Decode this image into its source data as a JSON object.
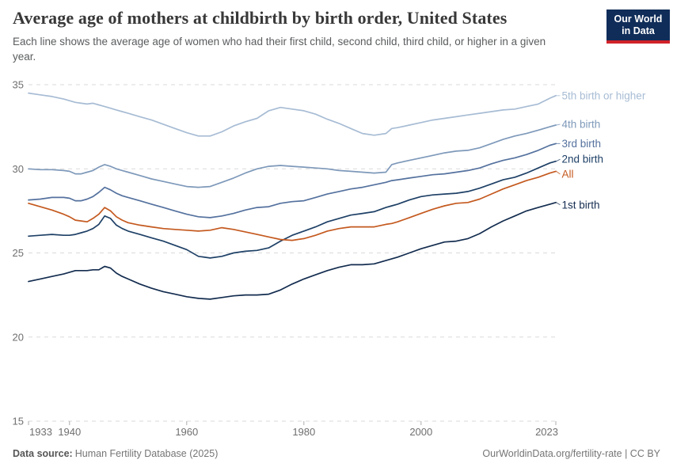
{
  "header": {
    "title": "Average age of mothers at childbirth by birth order, United States",
    "subtitle": "Each line shows the average age of women who had their first child, second child, third child, or higher in a given year.",
    "logo": {
      "line1": "Our World",
      "line2": "in Data",
      "bg_color": "#102d59",
      "accent_color": "#d12229"
    }
  },
  "footer": {
    "source_label": "Data source:",
    "source_value": "Human Fertility Database (2025)",
    "right_text": "OurWorldinData.org/fertility-rate | CC BY"
  },
  "chart_data": {
    "type": "line",
    "title": "Average age of mothers at childbirth by birth order, United States",
    "xlabel": "",
    "ylabel": "",
    "xlim": [
      1933,
      2023
    ],
    "ylim": [
      15,
      35
    ],
    "grid": "horizontal-dashed",
    "legend_position": "right-inline-labels",
    "y_ticks": [
      35,
      30,
      25,
      20,
      15
    ],
    "x_ticks": [
      1933,
      1940,
      1960,
      1980,
      2000,
      2023
    ],
    "x": [
      1933,
      1935,
      1937,
      1939,
      1940,
      1941,
      1942,
      1943,
      1944,
      1945,
      1946,
      1947,
      1948,
      1949,
      1950,
      1952,
      1954,
      1956,
      1958,
      1960,
      1962,
      1964,
      1966,
      1968,
      1970,
      1972,
      1974,
      1976,
      1978,
      1980,
      1982,
      1984,
      1986,
      1988,
      1990,
      1992,
      1994,
      1995,
      1996,
      1998,
      2000,
      2002,
      2004,
      2006,
      2008,
      2010,
      2012,
      2014,
      2016,
      2018,
      2020,
      2022,
      2023
    ],
    "series": [
      {
        "name": "5th birth or higher",
        "color": "#a7bcd4",
        "values": [
          34.5,
          34.4,
          34.3,
          34.15,
          34.05,
          33.95,
          33.9,
          33.85,
          33.9,
          33.8,
          33.7,
          33.6,
          33.5,
          33.4,
          33.3,
          33.1,
          32.9,
          32.65,
          32.4,
          32.15,
          31.95,
          31.95,
          32.2,
          32.55,
          32.8,
          33.0,
          33.45,
          33.65,
          33.55,
          33.45,
          33.25,
          32.95,
          32.7,
          32.4,
          32.1,
          32.0,
          32.1,
          32.4,
          32.45,
          32.6,
          32.75,
          32.9,
          33.0,
          33.1,
          33.2,
          33.3,
          33.4,
          33.5,
          33.55,
          33.7,
          33.85,
          34.2,
          34.35
        ]
      },
      {
        "name": "4th birth",
        "color": "#7e99ba",
        "values": [
          30.0,
          29.95,
          29.95,
          29.9,
          29.85,
          29.7,
          29.7,
          29.8,
          29.9,
          30.1,
          30.25,
          30.15,
          30.0,
          29.9,
          29.8,
          29.6,
          29.4,
          29.25,
          29.1,
          28.95,
          28.9,
          28.95,
          29.2,
          29.45,
          29.75,
          30.0,
          30.15,
          30.2,
          30.15,
          30.1,
          30.05,
          30.0,
          29.9,
          29.85,
          29.8,
          29.75,
          29.8,
          30.25,
          30.35,
          30.5,
          30.65,
          30.8,
          30.95,
          31.05,
          31.1,
          31.25,
          31.5,
          31.75,
          31.95,
          32.1,
          32.3,
          32.5,
          32.6
        ]
      },
      {
        "name": "3rd birth",
        "color": "#54719e",
        "values": [
          28.15,
          28.2,
          28.3,
          28.3,
          28.25,
          28.1,
          28.1,
          28.2,
          28.35,
          28.6,
          28.9,
          28.75,
          28.55,
          28.4,
          28.3,
          28.1,
          27.9,
          27.7,
          27.5,
          27.3,
          27.15,
          27.1,
          27.2,
          27.35,
          27.55,
          27.7,
          27.75,
          27.95,
          28.05,
          28.1,
          28.3,
          28.5,
          28.65,
          28.8,
          28.9,
          29.05,
          29.2,
          29.3,
          29.35,
          29.45,
          29.55,
          29.65,
          29.7,
          29.8,
          29.9,
          30.05,
          30.3,
          30.5,
          30.65,
          30.85,
          31.1,
          31.4,
          31.5
        ]
      },
      {
        "name": "2nd birth",
        "color": "#1e4066",
        "values": [
          26.0,
          26.05,
          26.1,
          26.05,
          26.05,
          26.1,
          26.2,
          26.3,
          26.45,
          26.7,
          27.2,
          27.05,
          26.65,
          26.45,
          26.3,
          26.1,
          25.9,
          25.7,
          25.45,
          25.2,
          24.8,
          24.7,
          24.8,
          25.0,
          25.1,
          25.15,
          25.3,
          25.7,
          26.05,
          26.3,
          26.55,
          26.85,
          27.05,
          27.25,
          27.35,
          27.45,
          27.7,
          27.8,
          27.9,
          28.15,
          28.35,
          28.45,
          28.5,
          28.55,
          28.65,
          28.85,
          29.1,
          29.35,
          29.5,
          29.75,
          30.05,
          30.35,
          30.45
        ]
      },
      {
        "name": "All",
        "color": "#c4591f",
        "values": [
          27.95,
          27.75,
          27.55,
          27.3,
          27.15,
          26.95,
          26.9,
          26.85,
          27.05,
          27.3,
          27.7,
          27.5,
          27.15,
          26.95,
          26.8,
          26.65,
          26.55,
          26.45,
          26.4,
          26.35,
          26.3,
          26.35,
          26.5,
          26.4,
          26.25,
          26.1,
          25.95,
          25.8,
          25.75,
          25.85,
          26.05,
          26.3,
          26.45,
          26.55,
          26.55,
          26.55,
          26.7,
          26.75,
          26.85,
          27.1,
          27.35,
          27.6,
          27.8,
          27.95,
          28.0,
          28.2,
          28.5,
          28.8,
          29.05,
          29.3,
          29.5,
          29.75,
          29.85
        ]
      },
      {
        "name": "1st birth",
        "color": "#132c4f",
        "values": [
          23.3,
          23.45,
          23.6,
          23.75,
          23.85,
          23.95,
          23.95,
          23.95,
          24.0,
          24.0,
          24.2,
          24.1,
          23.8,
          23.6,
          23.45,
          23.15,
          22.9,
          22.7,
          22.55,
          22.4,
          22.3,
          22.25,
          22.35,
          22.45,
          22.5,
          22.5,
          22.55,
          22.8,
          23.15,
          23.45,
          23.7,
          23.95,
          24.15,
          24.3,
          24.3,
          24.35,
          24.55,
          24.65,
          24.75,
          25.0,
          25.25,
          25.45,
          25.65,
          25.7,
          25.85,
          26.15,
          26.55,
          26.9,
          27.2,
          27.5,
          27.7,
          27.9,
          28.0
        ]
      }
    ]
  }
}
